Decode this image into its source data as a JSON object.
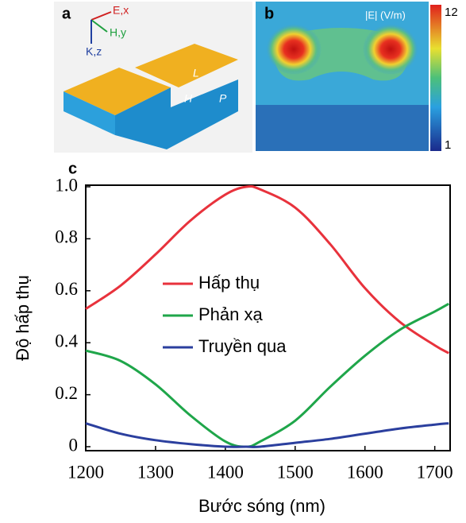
{
  "figure": {
    "panel_labels": [
      "a",
      "b",
      "c"
    ],
    "axis_arrows": [
      "E,x",
      "H,y",
      "K,z"
    ],
    "dimensions": [
      "L",
      "H",
      "P"
    ],
    "colorbar": {
      "label": "|E| (V/m)",
      "max": 12,
      "min": 1
    }
  },
  "chart_data": {
    "type": "line",
    "x_label": "Bước sóng (nm)",
    "y_label": "Độ hấp thụ",
    "x": [
      1200,
      1250,
      1300,
      1350,
      1400,
      1430,
      1450,
      1500,
      1550,
      1600,
      1650,
      1700,
      1720
    ],
    "series": [
      {
        "name": "Hấp thụ",
        "color": "#e8323c",
        "values": [
          0.53,
          0.62,
          0.74,
          0.87,
          0.97,
          1.0,
          0.99,
          0.92,
          0.78,
          0.61,
          0.48,
          0.39,
          0.36
        ]
      },
      {
        "name": "Phản xạ",
        "color": "#1fa64a",
        "values": [
          0.37,
          0.33,
          0.24,
          0.12,
          0.02,
          0.0,
          0.02,
          0.1,
          0.23,
          0.35,
          0.45,
          0.52,
          0.55
        ]
      },
      {
        "name": "Truyền qua",
        "color": "#2b3f9e",
        "values": [
          0.09,
          0.05,
          0.025,
          0.01,
          0.0,
          0.0,
          0.0,
          0.015,
          0.03,
          0.05,
          0.07,
          0.085,
          0.09
        ]
      }
    ],
    "xlim": [
      1200,
      1722
    ],
    "ylim": [
      0,
      1
    ],
    "xticks": [
      1200,
      1300,
      1400,
      1500,
      1600,
      1700
    ],
    "yticks": [
      0,
      0.2,
      0.4,
      0.6,
      0.8,
      {
        "value": 1,
        "label": "1.0"
      }
    ],
    "grid": false,
    "legend": "center-left"
  }
}
